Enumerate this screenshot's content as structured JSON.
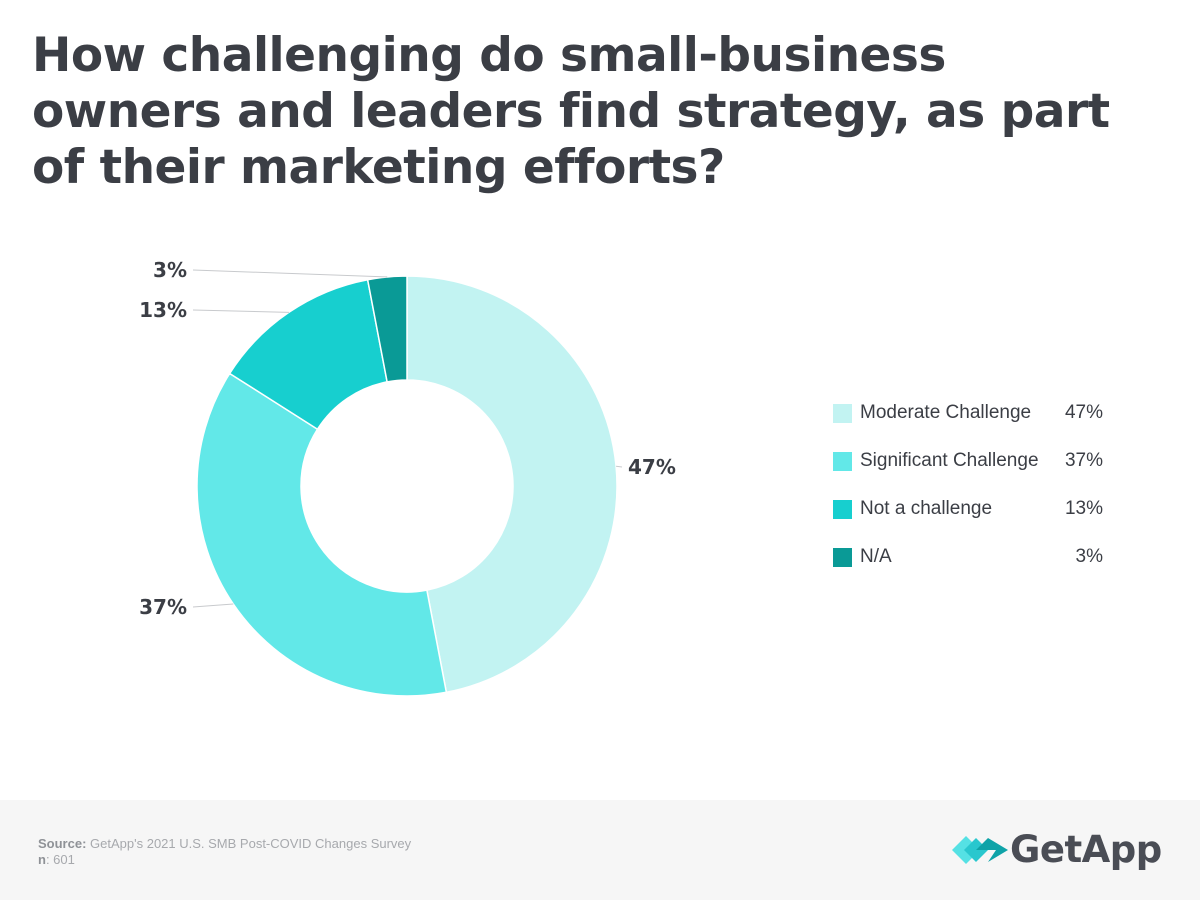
{
  "title": "How challenging do small-business owners and leaders find strategy, as part of their marketing efforts?",
  "chart_data": {
    "type": "pie",
    "variant": "donut",
    "title": "How challenging do small-business owners and leaders find strategy, as part of their marketing efforts?",
    "start_angle_deg": 0,
    "direction": "clockwise",
    "slices": [
      {
        "label": "Moderate Challenge",
        "value": 47,
        "display": "47%",
        "color": "#c2f3f2"
      },
      {
        "label": "Significant Challenge",
        "value": 37,
        "display": "37%",
        "color": "#62e8e8"
      },
      {
        "label": "Not a challenge",
        "value": 13,
        "display": "13%",
        "color": "#17cfcf"
      },
      {
        "label": "N/A",
        "value": 3,
        "display": "3%",
        "color": "#0a9a96"
      }
    ],
    "legend_position": "right"
  },
  "footer": {
    "source_label": "Source:",
    "source_text": "GetApp's 2021 U.S. SMB Post-COVID Changes Survey",
    "n_label": "n",
    "n_text": ": 601"
  },
  "logo": {
    "name": "GetApp",
    "icon": "getapp-chevrons-icon",
    "colors": [
      "#55e1e4",
      "#29c7ce",
      "#0fa3a8"
    ]
  }
}
